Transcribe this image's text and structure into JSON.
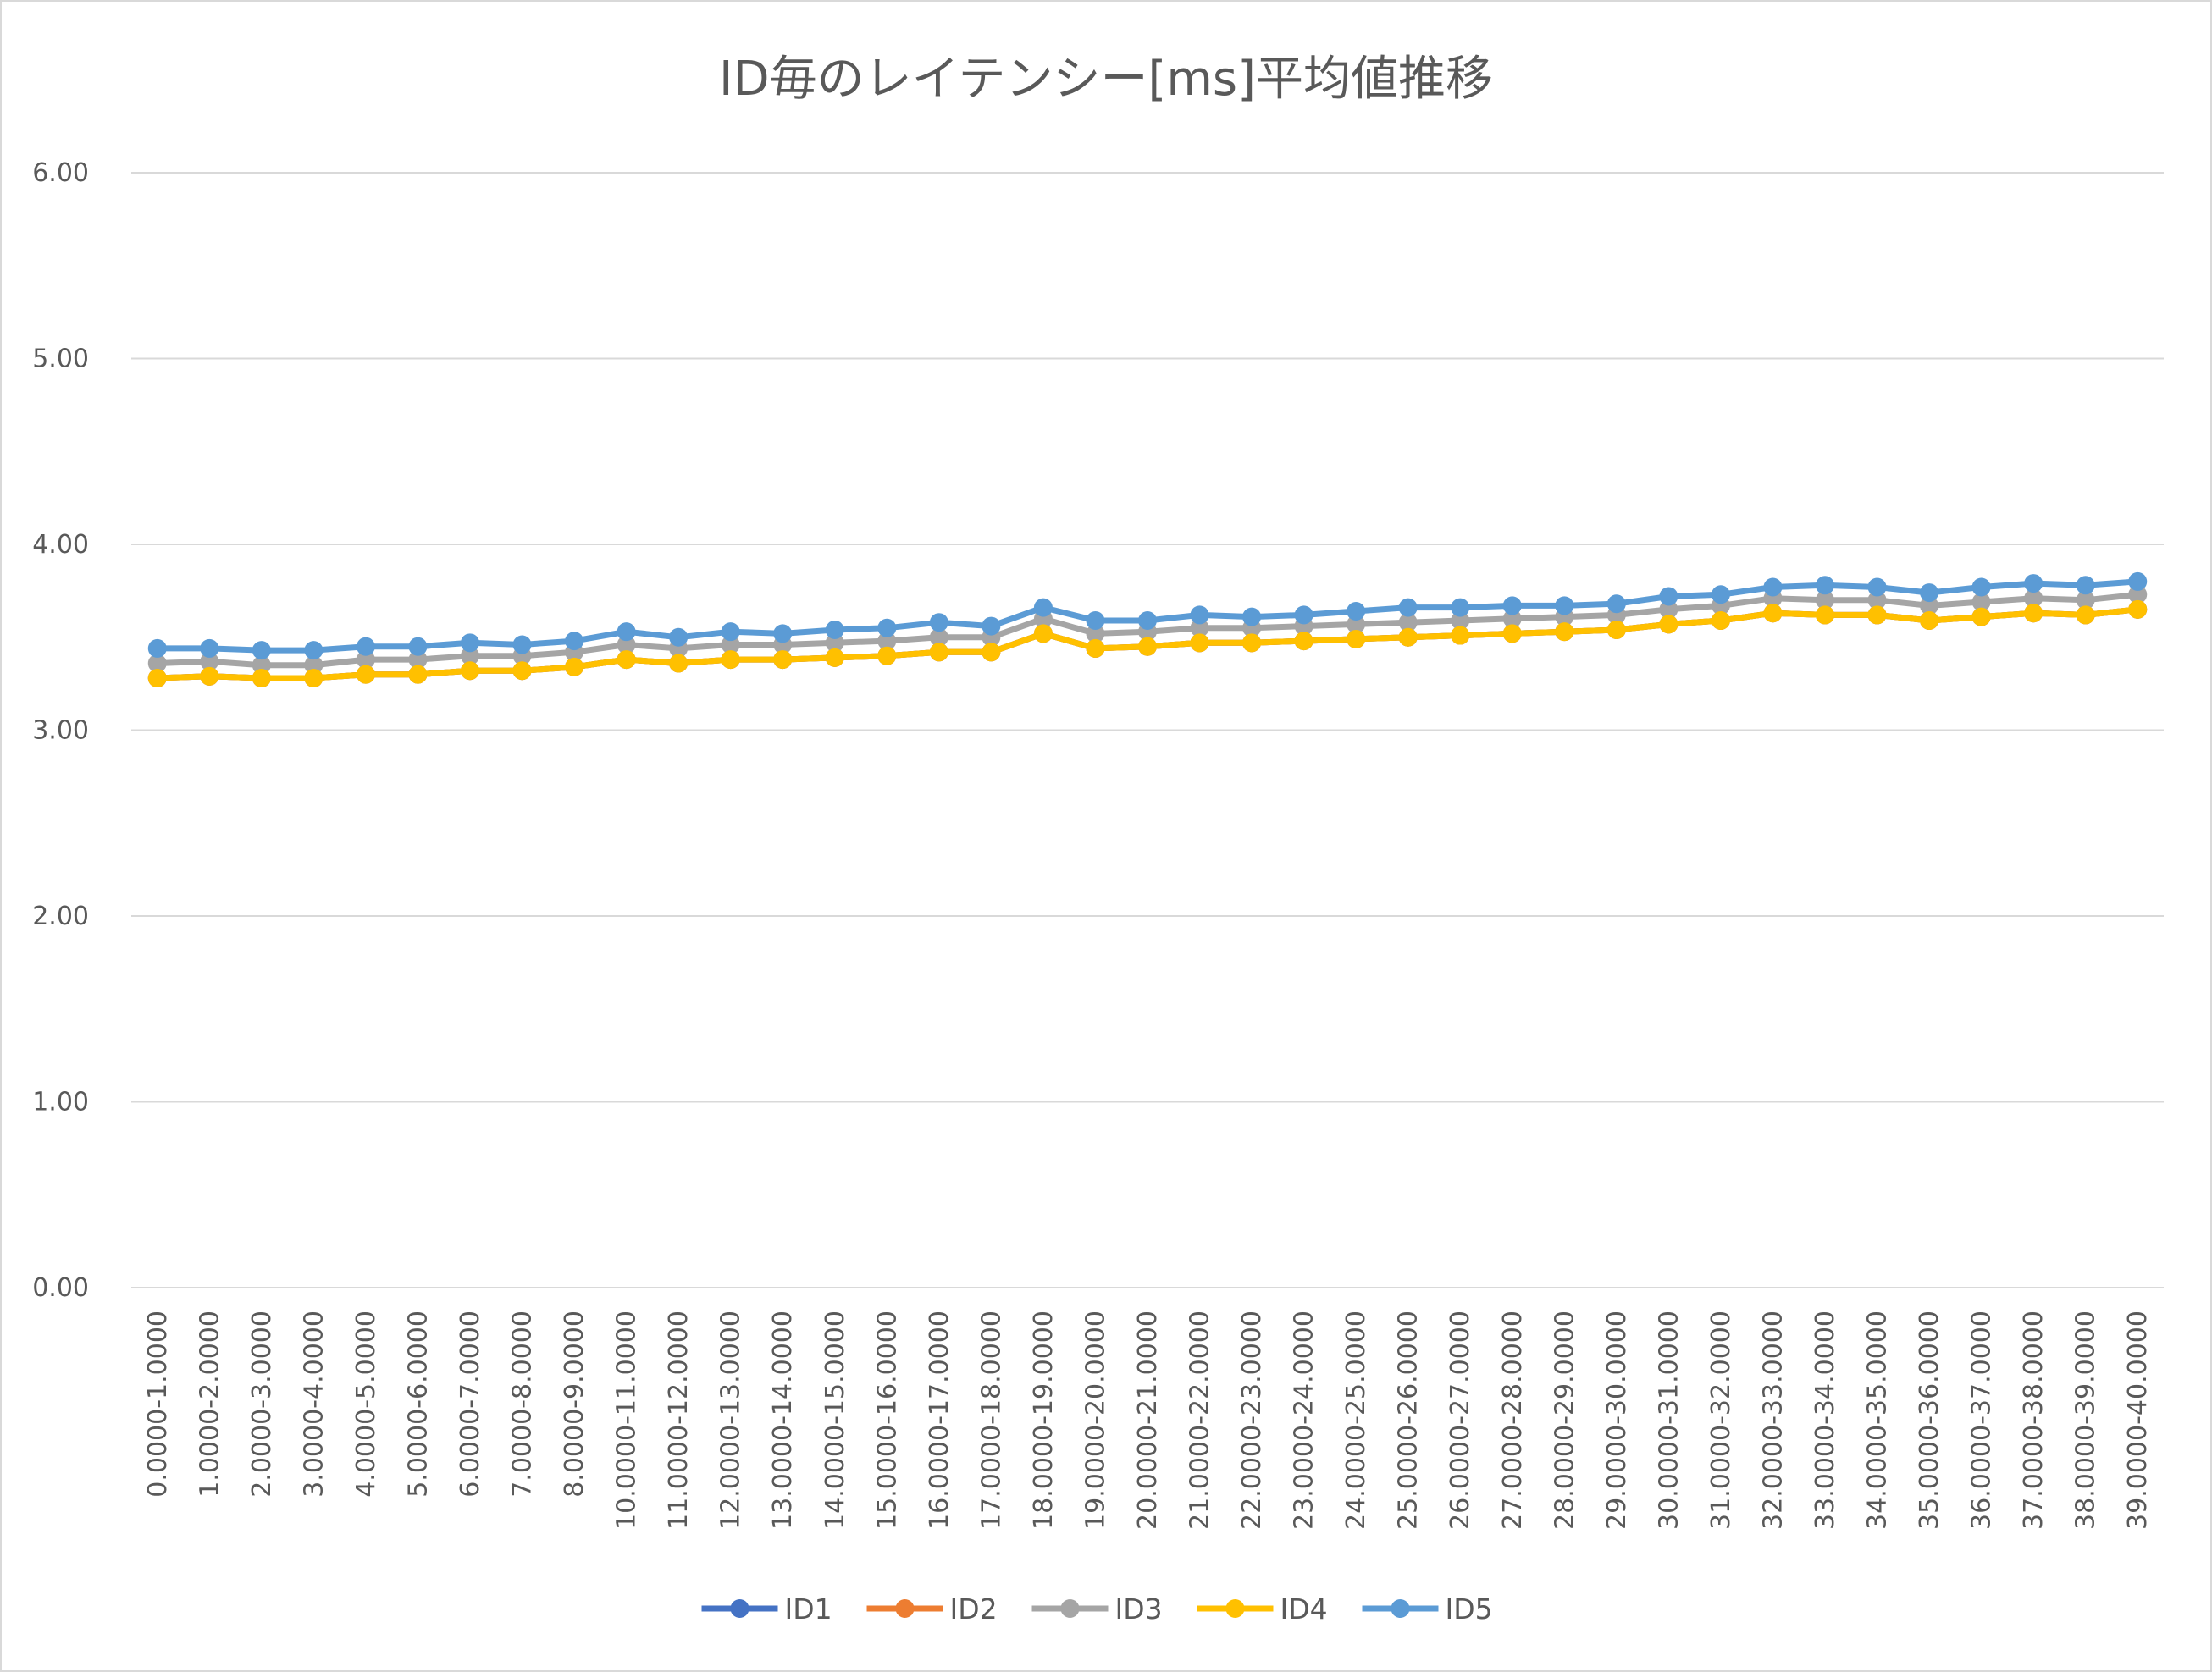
{
  "chart_data": {
    "type": "line",
    "title": "ID毎のレイテンシー[ms]平均値推移",
    "xlabel": "",
    "ylabel": "",
    "ylim": [
      0,
      6
    ],
    "y_ticks": [
      "0.00",
      "1.00",
      "2.00",
      "3.00",
      "4.00",
      "5.00",
      "6.00"
    ],
    "grid": "horizontal",
    "legend": "bottom",
    "categories": [
      "0.0000-1.0000",
      "1.0000-2.0000",
      "2.0000-3.0000",
      "3.0000-4.0000",
      "4.0000-5.0000",
      "5.0000-6.0000",
      "6.0000-7.0000",
      "7.0000-8.0000",
      "8.0000-9.0000",
      "10.0000-11.0000",
      "11.0000-12.0000",
      "12.0000-13.0000",
      "13.0000-14.0000",
      "14.0000-15.0000",
      "15.0000-16.0000",
      "16.0000-17.0000",
      "17.0000-18.0000",
      "18.0000-19.0000",
      "19.0000-20.0000",
      "20.0000-21.0000",
      "21.0000-22.0000",
      "22.0000-23.0000",
      "23.0000-24.0000",
      "24.0000-25.0000",
      "25.0000-26.0000",
      "26.0000-27.0000",
      "27.0000-28.0000",
      "28.0000-29.0000",
      "29.0000-30.0000",
      "30.0000-31.0000",
      "31.0000-32.0000",
      "32.0000-33.0000",
      "33.0000-34.0000",
      "34.0000-35.0000",
      "35.0000-36.0000",
      "36.0000-37.0000",
      "37.0000-38.0000",
      "38.0000-39.0000",
      "39.0000-40.0000"
    ],
    "series": [
      {
        "name": "ID1",
        "color": "#4472C4",
        "values": [
          3.28,
          3.29,
          3.28,
          3.28,
          3.3,
          3.3,
          3.32,
          3.32,
          3.34,
          3.38,
          3.36,
          3.38,
          3.38,
          3.39,
          3.4,
          3.42,
          3.42,
          3.52,
          3.44,
          3.45,
          3.47,
          3.47,
          3.48,
          3.49,
          3.5,
          3.51,
          3.52,
          3.53,
          3.54,
          3.57,
          3.59,
          3.63,
          3.62,
          3.62,
          3.59,
          3.61,
          3.63,
          3.62,
          3.65
        ]
      },
      {
        "name": "ID2",
        "color": "#ED7D31",
        "values": [
          3.28,
          3.29,
          3.28,
          3.28,
          3.3,
          3.3,
          3.32,
          3.32,
          3.34,
          3.38,
          3.36,
          3.38,
          3.38,
          3.39,
          3.4,
          3.42,
          3.42,
          3.52,
          3.44,
          3.45,
          3.47,
          3.47,
          3.48,
          3.49,
          3.5,
          3.51,
          3.52,
          3.53,
          3.54,
          3.57,
          3.59,
          3.63,
          3.62,
          3.62,
          3.59,
          3.61,
          3.63,
          3.62,
          3.65
        ]
      },
      {
        "name": "ID3",
        "color": "#A5A5A5",
        "values": [
          3.36,
          3.37,
          3.35,
          3.35,
          3.38,
          3.38,
          3.4,
          3.4,
          3.42,
          3.46,
          3.44,
          3.46,
          3.46,
          3.47,
          3.48,
          3.5,
          3.5,
          3.6,
          3.52,
          3.53,
          3.55,
          3.55,
          3.56,
          3.57,
          3.58,
          3.59,
          3.6,
          3.61,
          3.62,
          3.65,
          3.67,
          3.71,
          3.7,
          3.7,
          3.67,
          3.69,
          3.71,
          3.7,
          3.73
        ]
      },
      {
        "name": "ID4",
        "color": "#FFC000",
        "values": [
          3.28,
          3.29,
          3.28,
          3.28,
          3.3,
          3.3,
          3.32,
          3.32,
          3.34,
          3.38,
          3.36,
          3.38,
          3.38,
          3.39,
          3.4,
          3.42,
          3.42,
          3.52,
          3.44,
          3.45,
          3.47,
          3.47,
          3.48,
          3.49,
          3.5,
          3.51,
          3.52,
          3.53,
          3.54,
          3.57,
          3.59,
          3.63,
          3.62,
          3.62,
          3.59,
          3.61,
          3.63,
          3.62,
          3.65
        ]
      },
      {
        "name": "ID5",
        "color": "#5B9BD5",
        "values": [
          3.44,
          3.44,
          3.43,
          3.43,
          3.45,
          3.45,
          3.47,
          3.46,
          3.48,
          3.53,
          3.5,
          3.53,
          3.52,
          3.54,
          3.55,
          3.58,
          3.56,
          3.66,
          3.59,
          3.59,
          3.62,
          3.61,
          3.62,
          3.64,
          3.66,
          3.66,
          3.67,
          3.67,
          3.68,
          3.72,
          3.73,
          3.77,
          3.78,
          3.77,
          3.74,
          3.77,
          3.79,
          3.78,
          3.8
        ]
      }
    ]
  }
}
